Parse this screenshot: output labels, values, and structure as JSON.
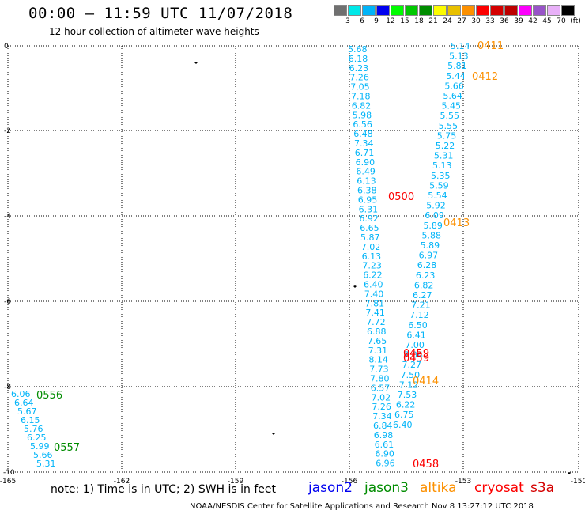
{
  "header": {
    "title": "00:00 – 11:59 UTC 11/07/2018",
    "subtitle": "12 hour collection of altimeter wave heights"
  },
  "color_scale": {
    "colors": [
      "#707070",
      "#00e8e8",
      "#00b4f8",
      "#0000f0",
      "#00fc00",
      "#00c800",
      "#008c00",
      "#fcfc00",
      "#e8c000",
      "#fc9000",
      "#fc0000",
      "#d40000",
      "#bc0000",
      "#fc00fc",
      "#9854c8",
      "#e8b0f8",
      "#000000"
    ],
    "labels": [
      "3",
      "6",
      "9",
      "12",
      "15",
      "18",
      "21",
      "24",
      "27",
      "30",
      "33",
      "36",
      "39",
      "42",
      "45",
      "70",
      "(ft)"
    ]
  },
  "axes": {
    "x_ticks": [
      "-165",
      "-162",
      "-159",
      "-156",
      "-153",
      "-150"
    ],
    "y_ticks": [
      "0",
      "-2",
      "-4",
      "-6",
      "-8",
      "-10"
    ]
  },
  "track_labels": [
    {
      "text": "0411",
      "color": "#fc9000"
    },
    {
      "text": "0412",
      "color": "#fc9000"
    },
    {
      "text": "0413",
      "color": "#fc9000"
    },
    {
      "text": "0414",
      "color": "#fc9000"
    },
    {
      "text": "0500",
      "color": "#fc0000"
    },
    {
      "text": "0459",
      "color": "#fc0000"
    },
    {
      "text": "0459",
      "color": "#fc0000"
    },
    {
      "text": "0458",
      "color": "#fc0000"
    },
    {
      "text": "0556",
      "color": "#008c00"
    },
    {
      "text": "0557",
      "color": "#008c00"
    }
  ],
  "wave_values": {
    "track_a": [
      "5.68",
      "6.18",
      "6.23",
      "7.26",
      "7.05",
      "7.18",
      "6.82",
      "5.98",
      "6.56",
      "6.48",
      "7.34",
      "6.71",
      "6.90",
      "6.49",
      "6.13",
      "6.38",
      "6.95",
      "6.31",
      "6.92",
      "6.65",
      "5.87",
      "7.02",
      "6.13",
      "7.23",
      "6.22",
      "6.40",
      "7.40",
      "7.81",
      "7.41",
      "7.72",
      "6.88",
      "7.65",
      "7.31",
      "8.14",
      "7.73",
      "7.80",
      "6.57",
      "7.02",
      "7.26",
      "7.34",
      "6.84",
      "6.98",
      "6.61",
      "6.90",
      "6.96"
    ],
    "track_b": [
      "5.14",
      "5.13",
      "5.81",
      "5.44",
      "5.66",
      "5.64",
      "5.45",
      "5.55",
      "5.55",
      "5.75",
      "5.22",
      "5.31",
      "5.13",
      "5.35",
      "5.59",
      "5.54",
      "5.92",
      "6.09",
      "5.89",
      "5.88",
      "5.89",
      "6.97",
      "6.28",
      "6.23",
      "6.82",
      "6.27",
      "7.21",
      "7.12",
      "6.50",
      "6.41",
      "7.00",
      "7.04",
      "7.27",
      "7.50",
      "7.12",
      "7.53",
      "6.22",
      "6.75",
      "6.40"
    ],
    "track_c": [
      "6.06",
      "6.64",
      "5.67",
      "6.15",
      "5.76",
      "6.25",
      "5.99",
      "5.66",
      "5.31"
    ]
  },
  "note": "note: 1) Time is in UTC; 2) SWH is in feet",
  "legend": [
    {
      "label": "jason2",
      "color": "#0000f0"
    },
    {
      "label": "jason3",
      "color": "#008c00"
    },
    {
      "label": "altika",
      "color": "#fc9000"
    },
    {
      "label": "cryosat",
      "color": "#fc0000"
    },
    {
      "label": "s3a",
      "color": "#d40000"
    }
  ],
  "credit": "NOAA/NESDIS Center for Satellite Applications and Research   Nov  8 13:27:12 UTC 2018"
}
